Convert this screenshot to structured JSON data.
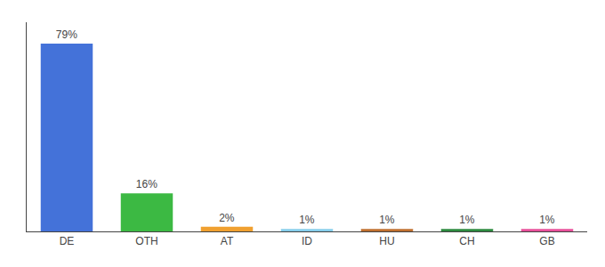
{
  "chart_data": {
    "type": "bar",
    "categories": [
      "DE",
      "OTH",
      "AT",
      "ID",
      "HU",
      "CH",
      "GB"
    ],
    "values": [
      79,
      16,
      2,
      1,
      1,
      1,
      1
    ],
    "value_labels": [
      "79%",
      "16%",
      "2%",
      "1%",
      "1%",
      "1%",
      "1%"
    ],
    "data_labels": true,
    "colors": [
      "#4472d9",
      "#3cb943",
      "#f0a030",
      "#87ceeb",
      "#c07030",
      "#2e8b40",
      "#e8509a"
    ],
    "ylim": [
      0,
      88
    ],
    "grid": false,
    "tick_labels": "x"
  }
}
